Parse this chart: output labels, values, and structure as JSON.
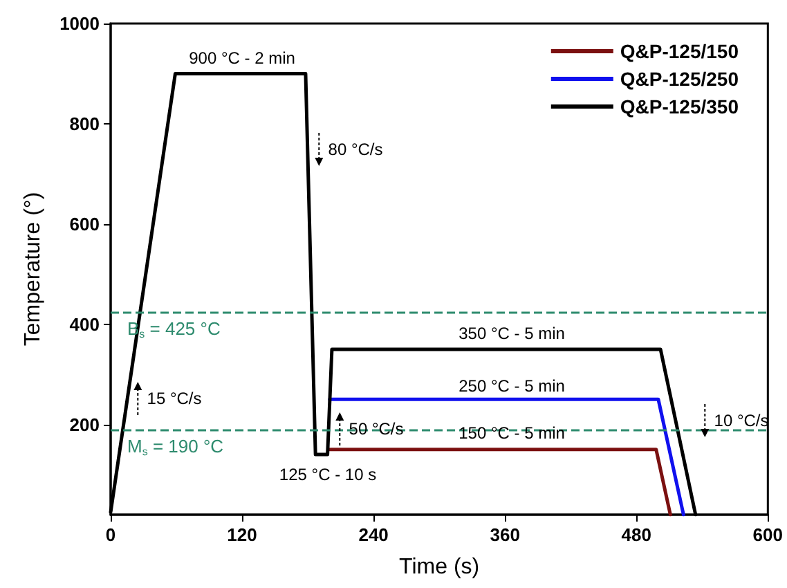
{
  "chart_data": {
    "type": "line",
    "xlabel": "Time (s)",
    "ylabel": "Temperature (°)",
    "xlim": [
      0,
      600
    ],
    "xticks": [
      0,
      120,
      240,
      360,
      480,
      600
    ],
    "ylim": [
      20,
      1000
    ],
    "yticks": [
      200,
      400,
      600,
      800,
      1000
    ],
    "grid": false,
    "legend": "top right",
    "marker": "none",
    "line_style": "solid",
    "series": [
      {
        "name": "Q&P-125/150",
        "color": "#7b1010",
        "x": [
          200,
          498,
          511
        ],
        "values": [
          150,
          150,
          20
        ]
      },
      {
        "name": "Q&P-125/250",
        "color": "#1010ee",
        "x": [
          200,
          500,
          523
        ],
        "values": [
          250,
          250,
          20
        ]
      },
      {
        "name": "Q&P-125/350",
        "color": "#000000",
        "x": [
          0,
          59,
          178,
          187,
          198,
          202,
          502,
          534
        ],
        "values": [
          25,
          900,
          900,
          140,
          140,
          350,
          350,
          20
        ]
      }
    ],
    "ref_lines": [
      {
        "axis": "y",
        "value": 425,
        "label": "B$_{s}$ = 425 °C",
        "color": "#2e8b6e",
        "line_style": "dashed"
      },
      {
        "axis": "y",
        "value": 190,
        "label": "M$_{s}$ = 190 °C",
        "color": "#2e8b6e",
        "line_style": "dashed"
      }
    ],
    "annotations": [
      "900 °C - 2 min",
      "80 °C/s",
      "15 °C/s",
      "50 °C/s",
      "125 °C - 10 s",
      "350 °C - 5 min",
      "250 °C - 5 min",
      "150 °C - 5 min",
      "10 °C/s"
    ]
  }
}
